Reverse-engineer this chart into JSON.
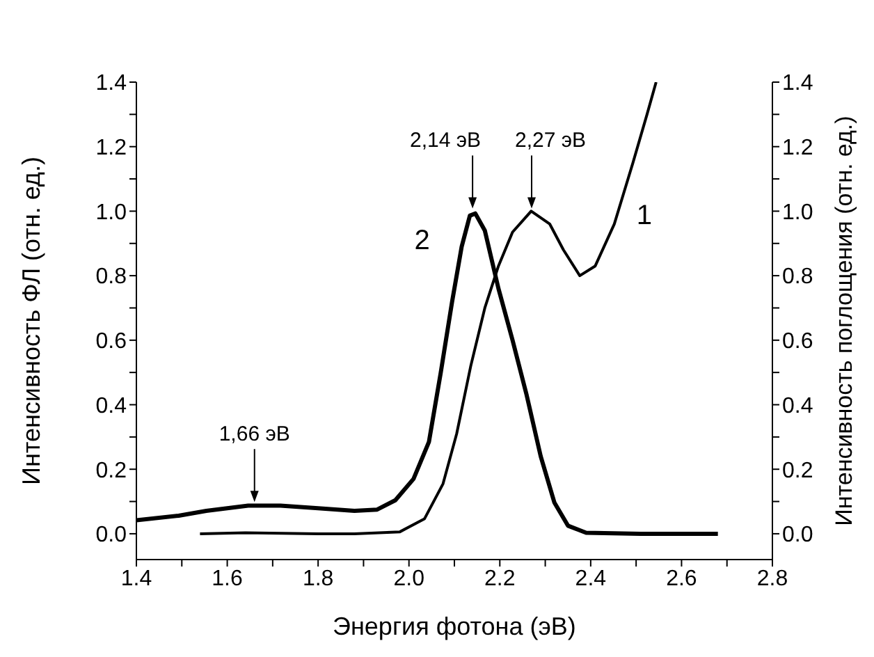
{
  "chart_data": {
    "type": "line",
    "xlabel": "Энергия фотона (эВ)",
    "ylabel": "Интенсивность ФЛ (отн. ед.)",
    "y2label": "Интенсивность поглощения (отн. ед.)",
    "xlim": [
      1.4,
      2.8
    ],
    "xticks": [
      1.4,
      {
        "value": 1.5,
        "label": null
      },
      1.6,
      {
        "value": 1.7,
        "label": null
      },
      1.8,
      {
        "value": 1.9,
        "label": null
      },
      {
        "value": 2.0,
        "label": "2.0"
      },
      {
        "value": 2.1,
        "label": null
      },
      2.2,
      {
        "value": 2.3,
        "label": null
      },
      2.4,
      {
        "value": 2.5,
        "label": null
      },
      2.6,
      {
        "value": 2.7,
        "label": null
      },
      2.8
    ],
    "ylim": [
      -0.08,
      1.4
    ],
    "yticks": [
      {
        "value": 0,
        "label": "0.0"
      },
      {
        "value": 0.1,
        "label": null
      },
      0.2,
      {
        "value": 0.3,
        "label": null
      },
      0.4,
      {
        "value": 0.5,
        "label": null
      },
      0.6,
      {
        "value": 0.7,
        "label": null
      },
      0.8,
      {
        "value": 0.9,
        "label": null
      },
      {
        "value": 1.0,
        "label": "1.0"
      },
      {
        "value": 1.1,
        "label": null
      },
      1.2,
      {
        "value": 1.3,
        "label": null
      },
      1.4
    ],
    "y2lim": [
      -0.08,
      1.4
    ],
    "y2ticks": [
      {
        "value": 0,
        "label": "0.0"
      },
      {
        "value": 0.1,
        "label": null
      },
      0.2,
      {
        "value": 0.3,
        "label": null
      },
      0.4,
      {
        "value": 0.5,
        "label": null
      },
      0.6,
      {
        "value": 0.7,
        "label": null
      },
      0.8,
      {
        "value": 0.9,
        "label": null
      },
      {
        "value": 1.0,
        "label": "1.0"
      },
      {
        "value": 1.1,
        "label": null
      },
      1.2,
      {
        "value": 1.3,
        "label": null
      },
      1.4
    ],
    "series": [
      {
        "name": "1",
        "color": "#000000",
        "axis": "y2",
        "x": [
          1.54,
          1.64,
          1.8,
          1.88,
          1.98,
          2.034,
          2.075,
          2.105,
          2.136,
          2.167,
          2.197,
          2.228,
          2.269,
          2.31,
          2.34,
          2.376,
          2.41,
          2.452,
          2.493,
          2.524,
          2.544
        ],
        "values": [
          0,
          0.003,
          0,
          0,
          0.006,
          0.046,
          0.155,
          0.31,
          0.52,
          0.7,
          0.83,
          0.935,
          1.0,
          0.96,
          0.88,
          0.8,
          0.83,
          0.96,
          1.15,
          1.3,
          1.4
        ]
      },
      {
        "name": "2",
        "color": "#000000",
        "x": [
          1.4,
          1.493,
          1.554,
          1.646,
          1.717,
          1.8,
          1.88,
          1.93,
          1.97,
          2.01,
          2.044,
          2.07,
          2.095,
          2.116,
          2.134,
          2.146,
          2.167,
          2.197,
          2.228,
          2.259,
          2.29,
          2.32,
          2.35,
          2.39,
          2.51,
          2.68
        ],
        "values": [
          0.042,
          0.056,
          0.071,
          0.087,
          0.087,
          0.079,
          0.071,
          0.075,
          0.104,
          0.17,
          0.285,
          0.5,
          0.72,
          0.89,
          0.986,
          0.993,
          0.94,
          0.76,
          0.6,
          0.43,
          0.24,
          0.097,
          0.025,
          0.003,
          0,
          0
        ]
      }
    ],
    "annotations": [
      {
        "text": "1,66 эВ",
        "x": 1.66,
        "y": 0.09
      },
      {
        "text": "2,14 эВ",
        "x": 2.14,
        "y": 1.0
      },
      {
        "text": "2,27 эВ",
        "x": 2.27,
        "y": 1.0
      }
    ]
  }
}
